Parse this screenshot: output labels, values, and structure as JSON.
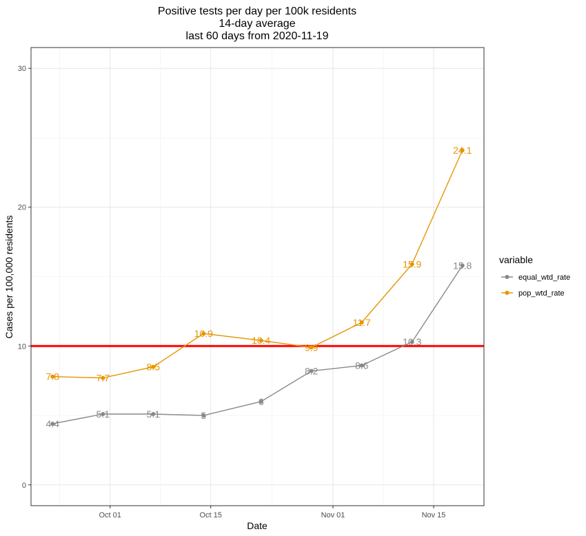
{
  "chart_data": {
    "type": "line",
    "title": [
      "Positive tests per day per 100k residents",
      "14-day average",
      "last 60 days from 2020-11-19"
    ],
    "xlabel": "Date",
    "ylabel": "Cases per 100,000 residents",
    "x_ticks": [
      {
        "label": "Oct 01",
        "date": "2020-10-01"
      },
      {
        "label": "Oct 15",
        "date": "2020-10-15"
      },
      {
        "label": "Nov 01",
        "date": "2020-11-01"
      },
      {
        "label": "Nov 15",
        "date": "2020-11-15"
      }
    ],
    "xlim": [
      "2020-09-20",
      "2020-11-22"
    ],
    "y_ticks": [
      0,
      10,
      20,
      30
    ],
    "ylim": [
      -1.5,
      31.5
    ],
    "grid": true,
    "reference_line": {
      "y": 10,
      "color": "#ff0000"
    },
    "x": [
      "2020-09-23",
      "2020-09-30",
      "2020-10-07",
      "2020-10-14",
      "2020-10-22",
      "2020-10-29",
      "2020-11-05",
      "2020-11-12",
      "2020-11-19"
    ],
    "series": [
      {
        "name": "equal_wtd_rate",
        "color": "#888888",
        "values": [
          4.4,
          5.1,
          5.1,
          5.0,
          6.0,
          8.2,
          8.6,
          10.3,
          15.8
        ],
        "labels": [
          "4.4",
          "5.1",
          "5.1",
          "5",
          "6",
          "8.2",
          "8.6",
          "10.3",
          "15.8"
        ]
      },
      {
        "name": "pop_wtd_rate",
        "color": "#e69500",
        "values": [
          7.8,
          7.7,
          8.5,
          10.9,
          10.4,
          9.9,
          11.7,
          15.9,
          24.1
        ],
        "labels": [
          "7.8",
          "7.7",
          "8.5",
          "10.9",
          "10.4",
          "9.9",
          "11.7",
          "15.9",
          "24.1"
        ]
      }
    ],
    "legend": {
      "title": "variable",
      "position": "right"
    }
  }
}
